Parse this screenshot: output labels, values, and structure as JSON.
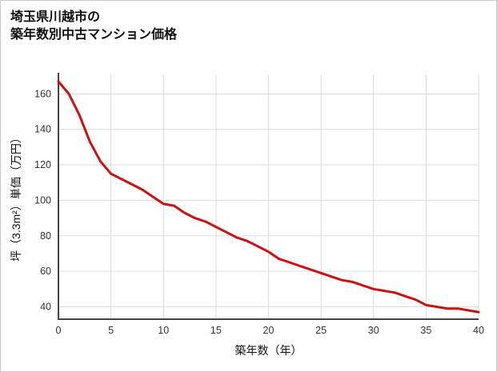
{
  "header": {
    "title_line1": "埼玉県川越市の",
    "title_line2": "築年数別中古マンション価格"
  },
  "chart_data": {
    "type": "line",
    "title": "埼玉県川越市の 築年数別中古マンション価格",
    "xlabel": "築年数（年）",
    "ylabel": "坪（3.3m²）単価（万円）",
    "x": [
      0,
      1,
      2,
      3,
      4,
      5,
      6,
      7,
      8,
      9,
      10,
      11,
      12,
      13,
      14,
      15,
      16,
      17,
      18,
      19,
      20,
      21,
      22,
      23,
      24,
      25,
      26,
      27,
      28,
      29,
      30,
      31,
      32,
      33,
      34,
      35,
      36,
      37,
      38,
      39,
      40
    ],
    "values": [
      167,
      160,
      148,
      133,
      122,
      115,
      112,
      109,
      106,
      102,
      98,
      97,
      93,
      90,
      88,
      85,
      82,
      79,
      77,
      74,
      71,
      67,
      65,
      63,
      61,
      59,
      57,
      55,
      54,
      52,
      50,
      49,
      48,
      46,
      44,
      41,
      40,
      39,
      39,
      38,
      37
    ],
    "xlim": [
      0,
      40
    ],
    "ylim": [
      33,
      171
    ],
    "x_ticks": [
      0,
      5,
      10,
      15,
      20,
      25,
      30,
      35,
      40
    ],
    "y_ticks": [
      40,
      60,
      80,
      100,
      120,
      140,
      160
    ],
    "grid": true,
    "legend": "none",
    "line_color": "#cc1111",
    "grid_color": "#dcdcdc",
    "axis_color": "#444444",
    "tick_label_color": "#333333",
    "axis_label_color": "#111111",
    "background": "#ffffff"
  }
}
